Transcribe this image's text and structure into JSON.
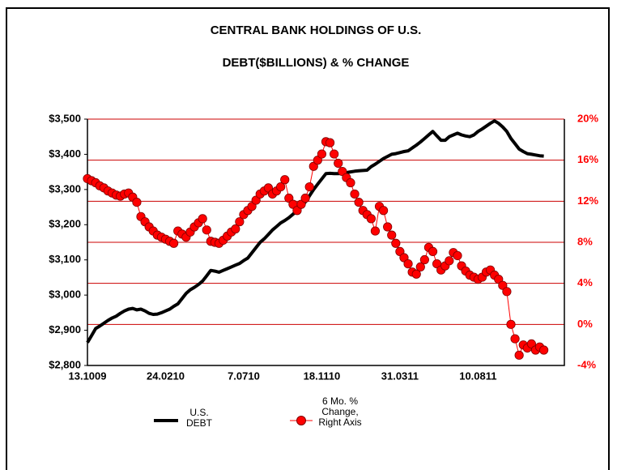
{
  "chart_data": {
    "type": "line",
    "title": "CENTRAL BANK HOLDINGS OF U.S.",
    "subtitle": "DEBT($BILLIONS) & % CHANGE",
    "categories": [
      "13.1009",
      null,
      null,
      null,
      null,
      null,
      null,
      null,
      null,
      null,
      null,
      null,
      null,
      null,
      null,
      null,
      null,
      null,
      null,
      "24.0210",
      null,
      null,
      null,
      null,
      null,
      null,
      null,
      null,
      null,
      null,
      null,
      null,
      null,
      null,
      null,
      null,
      null,
      null,
      "7.0710",
      null,
      null,
      null,
      null,
      null,
      null,
      null,
      null,
      null,
      null,
      null,
      null,
      null,
      null,
      null,
      null,
      null,
      null,
      "18.1110",
      null,
      null,
      null,
      null,
      null,
      null,
      null,
      null,
      null,
      null,
      null,
      null,
      null,
      null,
      null,
      null,
      null,
      null,
      "31.0311",
      null,
      null,
      null,
      null,
      null,
      null,
      null,
      null,
      null,
      null,
      null,
      null,
      null,
      null,
      null,
      null,
      null,
      null,
      "10.0811",
      null,
      null,
      null,
      null,
      null,
      null,
      null,
      null,
      null,
      null,
      null,
      null,
      null,
      null,
      null,
      null
    ],
    "series": [
      {
        "name": "U.S. DEBT",
        "color": "#000000",
        "values": [
          2865,
          2885,
          2905,
          2912,
          2920,
          2928,
          2935,
          2940,
          2948,
          2955,
          2960,
          2962,
          2958,
          2960,
          2955,
          2948,
          2945,
          2946,
          2950,
          2955,
          2960,
          2968,
          2975,
          2990,
          3005,
          3015,
          3022,
          3030,
          3040,
          3055,
          3070,
          3068,
          3065,
          3070,
          3075,
          3080,
          3085,
          3090,
          3098,
          3105,
          3120,
          3135,
          3150,
          3160,
          3172,
          3185,
          3195,
          3205,
          3212,
          3220,
          3230,
          3240,
          3250,
          3265,
          3282,
          3300,
          3315,
          3330,
          3345,
          3346,
          3345,
          3345,
          3346,
          3348,
          3350,
          3352,
          3353,
          3354,
          3355,
          3365,
          3372,
          3380,
          3388,
          3394,
          3400,
          3402,
          3405,
          3408,
          3410,
          3418,
          3426,
          3435,
          3445,
          3455,
          3465,
          3452,
          3440,
          3440,
          3450,
          3455,
          3460,
          3455,
          3452,
          3450,
          3455,
          3465,
          3472,
          3480,
          3488,
          3495,
          3488,
          3478,
          3465,
          3445,
          3430,
          3415,
          3408,
          3402,
          3400,
          3398,
          3396,
          3395
        ]
      },
      {
        "name": "6 Mo. % Change, Right Axis",
        "color": "#ff0000",
        "axis": "y2",
        "marker": "circle",
        "values": [
          14.2,
          14.0,
          13.8,
          13.5,
          13.3,
          13.0,
          12.8,
          12.6,
          12.5,
          12.7,
          12.8,
          12.4,
          11.9,
          10.5,
          10.0,
          9.5,
          9.1,
          8.7,
          8.5,
          8.3,
          8.1,
          7.9,
          9.1,
          8.8,
          8.5,
          9.0,
          9.5,
          9.9,
          10.3,
          9.2,
          8.1,
          8.0,
          7.9,
          8.2,
          8.6,
          9.0,
          9.3,
          10.0,
          10.7,
          11.1,
          11.5,
          12.1,
          12.7,
          13.0,
          13.3,
          12.7,
          13.0,
          13.4,
          14.1,
          12.3,
          11.7,
          11.1,
          11.7,
          12.3,
          13.4,
          15.4,
          16.0,
          16.6,
          17.8,
          17.7,
          16.6,
          15.7,
          14.9,
          14.3,
          13.8,
          12.7,
          11.9,
          11.1,
          10.7,
          10.3,
          9.1,
          11.5,
          11.1,
          9.5,
          8.7,
          7.9,
          7.1,
          6.5,
          5.9,
          5.1,
          4.9,
          5.6,
          6.3,
          7.5,
          7.1,
          5.9,
          5.3,
          5.7,
          6.2,
          7.0,
          6.7,
          5.7,
          5.2,
          4.8,
          4.6,
          4.4,
          4.6,
          5.1,
          5.3,
          4.8,
          4.4,
          3.8,
          3.2,
          0.0,
          -1.4,
          -3.0,
          -2.0,
          -2.3,
          -1.9,
          -2.5,
          -2.2,
          -2.5
        ]
      }
    ],
    "ylim": [
      2800,
      3500
    ],
    "yticks": [
      {
        "value": 2800,
        "label": "$2,800"
      },
      {
        "value": 2900,
        "label": "$2,900"
      },
      {
        "value": 3000,
        "label": "$3,000"
      },
      {
        "value": 3100,
        "label": "$3,100"
      },
      {
        "value": 3200,
        "label": "$3,200"
      },
      {
        "value": 3300,
        "label": "$3,300"
      },
      {
        "value": 3400,
        "label": "$3,400"
      },
      {
        "value": 3500,
        "label": "$3,500"
      }
    ],
    "y2lim": [
      -4,
      20
    ],
    "y2ticks": [
      {
        "value": -4,
        "label": "-4%"
      },
      {
        "value": 0,
        "label": "0%"
      },
      {
        "value": 4,
        "label": "4%"
      },
      {
        "value": 8,
        "label": "8%"
      },
      {
        "value": 12,
        "label": "12%"
      },
      {
        "value": 16,
        "label": "16%"
      },
      {
        "value": 20,
        "label": "20%"
      }
    ],
    "grid_axis": "y2",
    "grid_color": "#cc0000",
    "legend": "bottom"
  }
}
